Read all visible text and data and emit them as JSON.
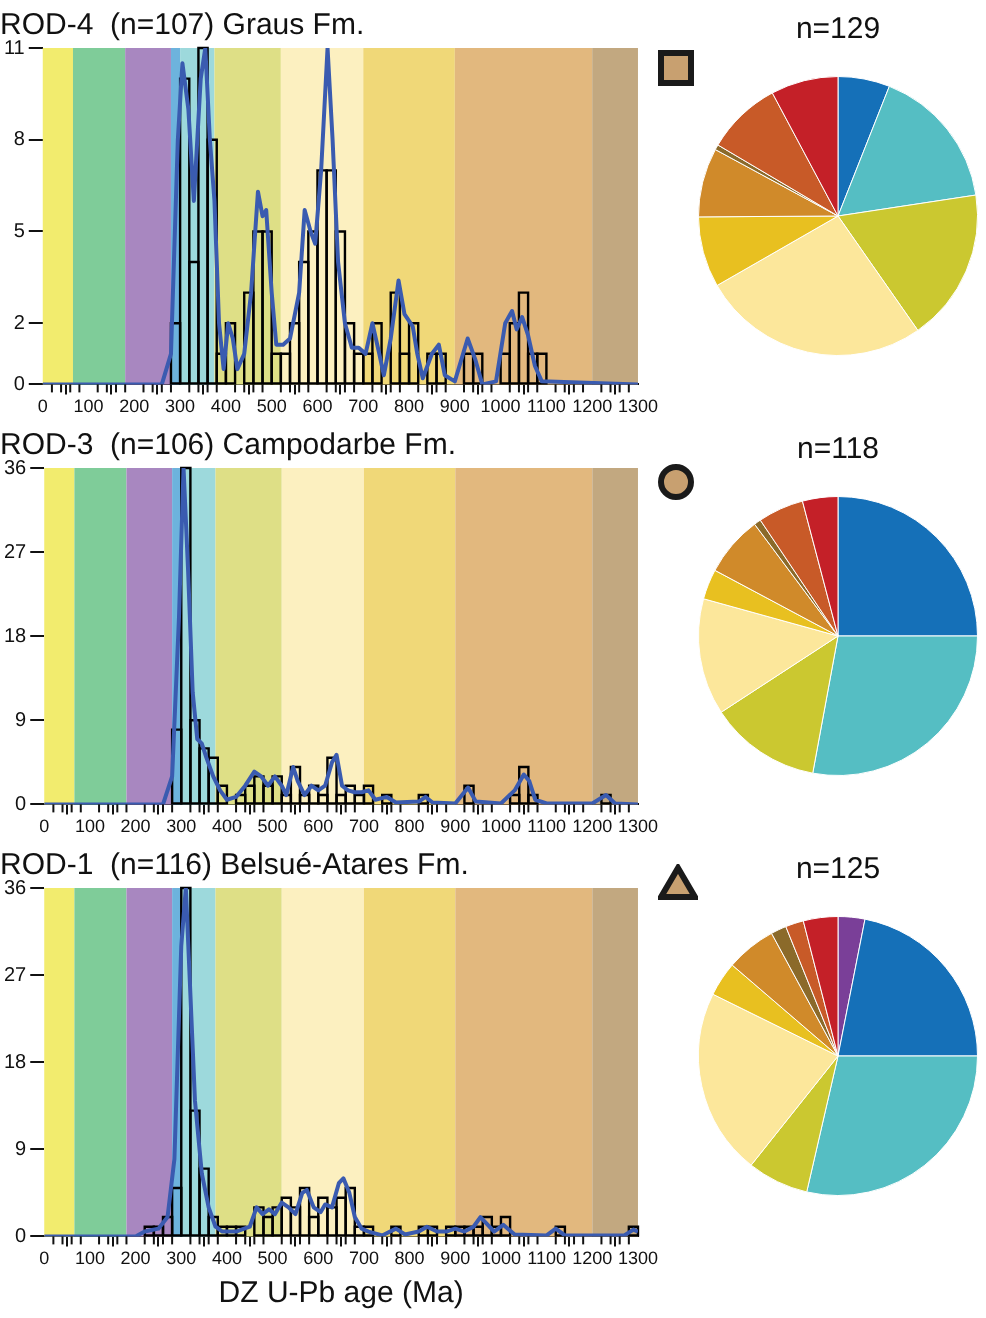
{
  "chart_data": [
    {
      "type": "histogram",
      "title": "ROD-4  (n=107) Graus Fm.",
      "bins": [
        0,
        20,
        40,
        60,
        80,
        100,
        120,
        140,
        160,
        180,
        200,
        220,
        240,
        260,
        280,
        300,
        320,
        340,
        360,
        380,
        400,
        420,
        440,
        460,
        480,
        500,
        520,
        540,
        560,
        580,
        600,
        620,
        640,
        660,
        680,
        700,
        720,
        740,
        760,
        780,
        800,
        820,
        840,
        860,
        880,
        900,
        920,
        940,
        960,
        980,
        1000,
        1020,
        1040,
        1060,
        1080,
        1100,
        1120,
        1140,
        1160,
        1180,
        1200,
        1220,
        1240,
        1260,
        1280,
        1300
      ],
      "series": [
        {
          "type": "histogram",
          "color": "#000000",
          "values": [
            0,
            0,
            0,
            0,
            0,
            0,
            0,
            0,
            0,
            0,
            0,
            0,
            0,
            0,
            2,
            10,
            4,
            11,
            8,
            1,
            2,
            0,
            3,
            5,
            5,
            1,
            1,
            2,
            4,
            5,
            7,
            7,
            5,
            2,
            1,
            1,
            2,
            0,
            3,
            1,
            2,
            0,
            1,
            1,
            0,
            0,
            1,
            1,
            0,
            0,
            1,
            2,
            3,
            1,
            1,
            0,
            0,
            0,
            0,
            0,
            0,
            0,
            0,
            0,
            0
          ]
        },
        {
          "type": "line",
          "color": "#3a5bb0",
          "x": [
            0,
            260,
            280,
            295,
            305,
            318,
            330,
            345,
            355,
            365,
            375,
            385,
            395,
            405,
            415,
            425,
            440,
            455,
            470,
            480,
            488,
            500,
            510,
            525,
            540,
            560,
            572,
            585,
            595,
            608,
            622,
            633,
            645,
            660,
            675,
            690,
            705,
            720,
            735,
            745,
            760,
            777,
            790,
            808,
            818,
            830,
            850,
            865,
            878,
            900,
            928,
            945,
            960,
            990,
            1010,
            1025,
            1035,
            1047,
            1060,
            1075,
            1090,
            1300
          ],
          "values": [
            0,
            0,
            1,
            8,
            10.5,
            9,
            6,
            10,
            11,
            8,
            6,
            2,
            0.5,
            2,
            1.5,
            0.5,
            1,
            3,
            6.3,
            5.5,
            5.7,
            3,
            1.3,
            1.3,
            1.5,
            3,
            5.7,
            5,
            4.6,
            7,
            11,
            8,
            4,
            2,
            1.2,
            1.2,
            1,
            2,
            1,
            0.3,
            1.5,
            3.4,
            2.3,
            1.9,
            1,
            0.2,
            1,
            1.3,
            0.3,
            0.1,
            1.5,
            0.8,
            0,
            0.1,
            2,
            2.4,
            1.8,
            2.2,
            1.6,
            0.6,
            0.1,
            0
          ]
        }
      ],
      "xlim": [
        0,
        1300
      ],
      "ylim": [
        0,
        11
      ],
      "yticks": [
        0,
        2,
        5,
        8,
        11
      ],
      "xticks": [
        0,
        {
          "value": 20,
          "label": null
        },
        {
          "value": 40,
          "label": null
        },
        {
          "value": 60,
          "label": null
        },
        {
          "value": 80,
          "label": null
        },
        100,
        {
          "value": 120,
          "label": null
        },
        {
          "value": 140,
          "label": null
        },
        {
          "value": 160,
          "label": null
        },
        {
          "value": 180,
          "label": null
        },
        200,
        {
          "value": 220,
          "label": null
        },
        {
          "value": 240,
          "label": null
        },
        {
          "value": 260,
          "label": null
        },
        {
          "value": 280,
          "label": null
        },
        300,
        {
          "value": 320,
          "label": null
        },
        {
          "value": 340,
          "label": null
        },
        {
          "value": 360,
          "label": null
        },
        {
          "value": 380,
          "label": null
        },
        400,
        {
          "value": 420,
          "label": null
        },
        {
          "value": 440,
          "label": null
        },
        {
          "value": 460,
          "label": null
        },
        {
          "value": 480,
          "label": null
        },
        500,
        {
          "value": 520,
          "label": null
        },
        {
          "value": 540,
          "label": null
        },
        {
          "value": 560,
          "label": null
        },
        {
          "value": 580,
          "label": null
        },
        600,
        {
          "value": 620,
          "label": null
        },
        {
          "value": 640,
          "label": null
        },
        {
          "value": 660,
          "label": null
        },
        {
          "value": 680,
          "label": null
        },
        700,
        {
          "value": 720,
          "label": null
        },
        {
          "value": 740,
          "label": null
        },
        {
          "value": 760,
          "label": null
        },
        {
          "value": 780,
          "label": null
        },
        800,
        {
          "value": 820,
          "label": null
        },
        {
          "value": 840,
          "label": null
        },
        {
          "value": 860,
          "label": null
        },
        {
          "value": 880,
          "label": null
        },
        900,
        {
          "value": 920,
          "label": null
        },
        {
          "value": 940,
          "label": null
        },
        {
          "value": 960,
          "label": null
        },
        {
          "value": 980,
          "label": null
        },
        1000,
        {
          "value": 1020,
          "label": null
        },
        {
          "value": 1040,
          "label": null
        },
        {
          "value": 1060,
          "label": null
        },
        {
          "value": 1080,
          "label": null
        },
        1100,
        {
          "value": 1120,
          "label": null
        },
        {
          "value": 1140,
          "label": null
        },
        {
          "value": 1160,
          "label": null
        },
        {
          "value": 1180,
          "label": null
        },
        1200,
        {
          "value": 1220,
          "label": null
        },
        {
          "value": 1240,
          "label": null
        },
        {
          "value": 1260,
          "label": null
        },
        {
          "value": 1280,
          "label": null
        },
        1300
      ],
      "bands": [
        {
          "axis": "x",
          "from": 0,
          "to": 66,
          "color": "#f2ec6e"
        },
        {
          "axis": "x",
          "from": 66,
          "to": 180,
          "color": "#7fcc99"
        },
        {
          "axis": "x",
          "from": 180,
          "to": 280,
          "color": "#a887c0"
        },
        {
          "axis": "x",
          "from": 280,
          "to": 300,
          "color": "#6db3dd"
        },
        {
          "axis": "x",
          "from": 300,
          "to": 375,
          "color": "#9dd9dc"
        },
        {
          "axis": "x",
          "from": 375,
          "to": 520,
          "color": "#dedf86"
        },
        {
          "axis": "x",
          "from": 520,
          "to": 700,
          "color": "#fcf0c0"
        },
        {
          "axis": "x",
          "from": 700,
          "to": 900,
          "color": "#f0d878"
        },
        {
          "axis": "x",
          "from": 900,
          "to": 1200,
          "color": "#e2b87e"
        },
        {
          "axis": "x",
          "from": 1200,
          "to": 1300,
          "color": "#c2a880"
        }
      ],
      "grid": false,
      "legend": false
    },
    {
      "type": "pie",
      "title": "n=129",
      "categories": [
        null,
        null,
        null,
        null,
        null,
        null,
        null,
        null,
        null
      ],
      "values": [
        6.0,
        16.6,
        17.7,
        26.4,
        8.2,
        8.0,
        0.6,
        8.7,
        7.8
      ],
      "colors": [
        "#1570b8",
        "#55bec3",
        "#cbc830",
        "#fce79b",
        "#e8c020",
        "#d08a2a",
        "#8b6a2a",
        "#c85a28",
        "#c42028"
      ],
      "legend": false
    },
    {
      "type": "histogram",
      "title": "ROD-3  (n=106) Campodarbe Fm.",
      "bins": [
        0,
        20,
        40,
        60,
        80,
        100,
        120,
        140,
        160,
        180,
        200,
        220,
        240,
        260,
        280,
        300,
        320,
        340,
        360,
        380,
        400,
        420,
        440,
        460,
        480,
        500,
        520,
        540,
        560,
        580,
        600,
        620,
        640,
        660,
        680,
        700,
        720,
        740,
        760,
        780,
        800,
        820,
        840,
        860,
        880,
        900,
        920,
        940,
        960,
        980,
        1000,
        1020,
        1040,
        1060,
        1080,
        1100,
        1120,
        1140,
        1160,
        1180,
        1200,
        1220,
        1240,
        1260,
        1280,
        1300
      ],
      "series": [
        {
          "type": "histogram",
          "color": "#000000",
          "values": [
            0,
            0,
            0,
            0,
            0,
            0,
            0,
            0,
            0,
            0,
            0,
            0,
            0,
            0,
            8,
            36,
            9,
            6,
            5,
            2,
            0,
            1,
            2,
            3,
            2,
            3,
            1,
            4,
            1,
            2,
            1,
            5,
            1,
            2,
            1,
            2,
            0,
            1,
            0,
            0,
            0,
            1,
            0,
            0,
            0,
            0,
            2,
            0,
            0,
            0,
            0,
            1,
            4,
            1,
            0,
            0,
            0,
            0,
            0,
            0,
            0,
            1,
            0,
            0,
            0
          ]
        },
        {
          "type": "line",
          "color": "#3a5bb0",
          "x": [
            0,
            260,
            280,
            295,
            305,
            315,
            325,
            335,
            345,
            355,
            370,
            385,
            400,
            420,
            440,
            460,
            475,
            490,
            505,
            520,
            530,
            545,
            555,
            570,
            585,
            600,
            615,
            630,
            640,
            652,
            665,
            680,
            695,
            710,
            725,
            750,
            770,
            820,
            835,
            850,
            900,
            928,
            945,
            1000,
            1030,
            1050,
            1062,
            1075,
            1100,
            1200,
            1230,
            1250,
            1300
          ],
          "values": [
            0,
            0,
            3,
            20,
            36,
            25,
            12,
            7,
            6.5,
            5,
            3,
            1.5,
            0.5,
            0.8,
            2,
            3.5,
            3,
            2,
            3,
            2,
            1,
            4,
            2.5,
            1,
            2,
            1.5,
            2,
            4.5,
            5.3,
            2,
            1.5,
            1.3,
            1.3,
            1.5,
            0.5,
            0.8,
            0.2,
            0.3,
            0.8,
            0.2,
            0.1,
            1.8,
            0.3,
            0.1,
            1.5,
            3.2,
            2.5,
            0.5,
            0.1,
            0.1,
            1,
            0.1,
            0
          ]
        }
      ],
      "xlim": [
        0,
        1300
      ],
      "ylim": [
        0,
        36
      ],
      "yticks": [
        0,
        9,
        18,
        27,
        36
      ],
      "xticks": [
        0,
        {
          "value": 20,
          "label": null
        },
        {
          "value": 40,
          "label": null
        },
        {
          "value": 60,
          "label": null
        },
        {
          "value": 80,
          "label": null
        },
        100,
        {
          "value": 120,
          "label": null
        },
        {
          "value": 140,
          "label": null
        },
        {
          "value": 160,
          "label": null
        },
        {
          "value": 180,
          "label": null
        },
        200,
        {
          "value": 220,
          "label": null
        },
        {
          "value": 240,
          "label": null
        },
        {
          "value": 260,
          "label": null
        },
        {
          "value": 280,
          "label": null
        },
        300,
        {
          "value": 320,
          "label": null
        },
        {
          "value": 340,
          "label": null
        },
        {
          "value": 360,
          "label": null
        },
        {
          "value": 380,
          "label": null
        },
        400,
        {
          "value": 420,
          "label": null
        },
        {
          "value": 440,
          "label": null
        },
        {
          "value": 460,
          "label": null
        },
        {
          "value": 480,
          "label": null
        },
        500,
        {
          "value": 520,
          "label": null
        },
        {
          "value": 540,
          "label": null
        },
        {
          "value": 560,
          "label": null
        },
        {
          "value": 580,
          "label": null
        },
        600,
        {
          "value": 620,
          "label": null
        },
        {
          "value": 640,
          "label": null
        },
        {
          "value": 660,
          "label": null
        },
        {
          "value": 680,
          "label": null
        },
        700,
        {
          "value": 720,
          "label": null
        },
        {
          "value": 740,
          "label": null
        },
        {
          "value": 760,
          "label": null
        },
        {
          "value": 780,
          "label": null
        },
        800,
        {
          "value": 820,
          "label": null
        },
        {
          "value": 840,
          "label": null
        },
        {
          "value": 860,
          "label": null
        },
        {
          "value": 880,
          "label": null
        },
        900,
        {
          "value": 920,
          "label": null
        },
        {
          "value": 940,
          "label": null
        },
        {
          "value": 960,
          "label": null
        },
        {
          "value": 980,
          "label": null
        },
        1000,
        {
          "value": 1020,
          "label": null
        },
        {
          "value": 1040,
          "label": null
        },
        {
          "value": 1060,
          "label": null
        },
        {
          "value": 1080,
          "label": null
        },
        1100,
        {
          "value": 1120,
          "label": null
        },
        {
          "value": 1140,
          "label": null
        },
        {
          "value": 1160,
          "label": null
        },
        {
          "value": 1180,
          "label": null
        },
        1200,
        {
          "value": 1220,
          "label": null
        },
        {
          "value": 1240,
          "label": null
        },
        {
          "value": 1260,
          "label": null
        },
        {
          "value": 1280,
          "label": null
        },
        1300
      ],
      "bands": [
        {
          "axis": "x",
          "from": 0,
          "to": 66,
          "color": "#f2ec6e"
        },
        {
          "axis": "x",
          "from": 66,
          "to": 180,
          "color": "#7fcc99"
        },
        {
          "axis": "x",
          "from": 180,
          "to": 280,
          "color": "#a887c0"
        },
        {
          "axis": "x",
          "from": 280,
          "to": 300,
          "color": "#6db3dd"
        },
        {
          "axis": "x",
          "from": 300,
          "to": 375,
          "color": "#9dd9dc"
        },
        {
          "axis": "x",
          "from": 375,
          "to": 520,
          "color": "#dedf86"
        },
        {
          "axis": "x",
          "from": 520,
          "to": 700,
          "color": "#fcf0c0"
        },
        {
          "axis": "x",
          "from": 700,
          "to": 900,
          "color": "#f0d878"
        },
        {
          "axis": "x",
          "from": 900,
          "to": 1200,
          "color": "#e2b87e"
        },
        {
          "axis": "x",
          "from": 1200,
          "to": 1300,
          "color": "#c2a880"
        }
      ],
      "grid": false,
      "legend": false
    },
    {
      "type": "pie",
      "title": "n=118",
      "categories": [
        null,
        null,
        null,
        null,
        null,
        null,
        null,
        null,
        null
      ],
      "values": [
        25.0,
        27.9,
        12.9,
        13.5,
        3.5,
        7.0,
        0.8,
        5.3,
        4.1
      ],
      "colors": [
        "#1570b8",
        "#55bec3",
        "#cbc830",
        "#fce79b",
        "#e8c020",
        "#d08a2a",
        "#8b6a2a",
        "#c85a28",
        "#c42028"
      ],
      "legend": false
    },
    {
      "type": "histogram",
      "title": "ROD-1  (n=116) Belsué-Atares Fm.",
      "xlabel": "DZ U-Pb age (Ma)",
      "bins": [
        0,
        20,
        40,
        60,
        80,
        100,
        120,
        140,
        160,
        180,
        200,
        220,
        240,
        260,
        280,
        300,
        320,
        340,
        360,
        380,
        400,
        420,
        440,
        460,
        480,
        500,
        520,
        540,
        560,
        580,
        600,
        620,
        640,
        660,
        680,
        700,
        720,
        740,
        760,
        780,
        800,
        820,
        840,
        860,
        880,
        900,
        920,
        940,
        960,
        980,
        1000,
        1020,
        1040,
        1060,
        1080,
        1100,
        1120,
        1140,
        1160,
        1180,
        1200,
        1220,
        1240,
        1260,
        1280,
        1300
      ],
      "series": [
        {
          "type": "histogram",
          "color": "#000000",
          "values": [
            0,
            0,
            0,
            0,
            0,
            0,
            0,
            0,
            0,
            0,
            0,
            1,
            1,
            2,
            5,
            36,
            13,
            7,
            2,
            1,
            1,
            1,
            0,
            3,
            2,
            3,
            4,
            3,
            5,
            2,
            4,
            3,
            4,
            5,
            1,
            1,
            0,
            0,
            1,
            0,
            0,
            1,
            1,
            0,
            1,
            1,
            1,
            1,
            2,
            1,
            2,
            0,
            0,
            0,
            0,
            0,
            1,
            0,
            0,
            0,
            0,
            0,
            0,
            0,
            1
          ]
        },
        {
          "type": "line",
          "color": "#3a5bb0",
          "x": [
            0,
            200,
            220,
            250,
            270,
            285,
            300,
            310,
            320,
            330,
            345,
            360,
            375,
            390,
            420,
            450,
            465,
            478,
            492,
            505,
            520,
            535,
            550,
            565,
            575,
            590,
            605,
            615,
            630,
            645,
            655,
            668,
            680,
            695,
            710,
            740,
            770,
            790,
            820,
            838,
            860,
            880,
            900,
            920,
            940,
            955,
            965,
            985,
            1005,
            1030,
            1100,
            1120,
            1140,
            1270,
            1290,
            1300
          ],
          "values": [
            0,
            0,
            0.5,
            0.8,
            2,
            8,
            30,
            36,
            25,
            14,
            6.5,
            3,
            1,
            0.5,
            0.5,
            1,
            3,
            2.3,
            2.8,
            2.3,
            3.5,
            3,
            2.3,
            4.5,
            4.8,
            3,
            2.5,
            3.3,
            3,
            5.5,
            6,
            4.5,
            2,
            0.8,
            0.5,
            0.1,
            0.8,
            0.2,
            0.5,
            1,
            0.5,
            0.5,
            0.8,
            0.5,
            1,
            2,
            1.5,
            0.5,
            1.2,
            0.2,
            0.1,
            0.8,
            0.1,
            0.1,
            0.7,
            0.5
          ]
        }
      ],
      "xlim": [
        0,
        1300
      ],
      "ylim": [
        0,
        36
      ],
      "yticks": [
        0,
        9,
        18,
        27,
        36
      ],
      "xticks": [
        0,
        {
          "value": 20,
          "label": null
        },
        {
          "value": 40,
          "label": null
        },
        {
          "value": 60,
          "label": null
        },
        {
          "value": 80,
          "label": null
        },
        100,
        {
          "value": 120,
          "label": null
        },
        {
          "value": 140,
          "label": null
        },
        {
          "value": 160,
          "label": null
        },
        {
          "value": 180,
          "label": null
        },
        200,
        {
          "value": 220,
          "label": null
        },
        {
          "value": 240,
          "label": null
        },
        {
          "value": 260,
          "label": null
        },
        {
          "value": 280,
          "label": null
        },
        300,
        {
          "value": 320,
          "label": null
        },
        {
          "value": 340,
          "label": null
        },
        {
          "value": 360,
          "label": null
        },
        {
          "value": 380,
          "label": null
        },
        400,
        {
          "value": 420,
          "label": null
        },
        {
          "value": 440,
          "label": null
        },
        {
          "value": 460,
          "label": null
        },
        {
          "value": 480,
          "label": null
        },
        500,
        {
          "value": 520,
          "label": null
        },
        {
          "value": 540,
          "label": null
        },
        {
          "value": 560,
          "label": null
        },
        {
          "value": 580,
          "label": null
        },
        600,
        {
          "value": 620,
          "label": null
        },
        {
          "value": 640,
          "label": null
        },
        {
          "value": 660,
          "label": null
        },
        {
          "value": 680,
          "label": null
        },
        700,
        {
          "value": 720,
          "label": null
        },
        {
          "value": 740,
          "label": null
        },
        {
          "value": 760,
          "label": null
        },
        {
          "value": 780,
          "label": null
        },
        800,
        {
          "value": 820,
          "label": null
        },
        {
          "value": 840,
          "label": null
        },
        {
          "value": 860,
          "label": null
        },
        {
          "value": 880,
          "label": null
        },
        900,
        {
          "value": 920,
          "label": null
        },
        {
          "value": 940,
          "label": null
        },
        {
          "value": 960,
          "label": null
        },
        {
          "value": 980,
          "label": null
        },
        1000,
        {
          "value": 1020,
          "label": null
        },
        {
          "value": 1040,
          "label": null
        },
        {
          "value": 1060,
          "label": null
        },
        {
          "value": 1080,
          "label": null
        },
        1100,
        {
          "value": 1120,
          "label": null
        },
        {
          "value": 1140,
          "label": null
        },
        {
          "value": 1160,
          "label": null
        },
        {
          "value": 1180,
          "label": null
        },
        1200,
        {
          "value": 1220,
          "label": null
        },
        {
          "value": 1240,
          "label": null
        },
        {
          "value": 1260,
          "label": null
        },
        {
          "value": 1280,
          "label": null
        },
        1300
      ],
      "bands": [
        {
          "axis": "x",
          "from": 0,
          "to": 66,
          "color": "#f2ec6e"
        },
        {
          "axis": "x",
          "from": 66,
          "to": 180,
          "color": "#7fcc99"
        },
        {
          "axis": "x",
          "from": 180,
          "to": 280,
          "color": "#a887c0"
        },
        {
          "axis": "x",
          "from": 280,
          "to": 300,
          "color": "#6db3dd"
        },
        {
          "axis": "x",
          "from": 300,
          "to": 375,
          "color": "#9dd9dc"
        },
        {
          "axis": "x",
          "from": 375,
          "to": 520,
          "color": "#dedf86"
        },
        {
          "axis": "x",
          "from": 520,
          "to": 700,
          "color": "#fcf0c0"
        },
        {
          "axis": "x",
          "from": 700,
          "to": 900,
          "color": "#f0d878"
        },
        {
          "axis": "x",
          "from": 900,
          "to": 1200,
          "color": "#e2b87e"
        },
        {
          "axis": "x",
          "from": 1200,
          "to": 1300,
          "color": "#c2a880"
        }
      ],
      "grid": false,
      "legend": false
    },
    {
      "type": "pie",
      "title": "n=125",
      "categories": [
        null,
        null,
        null,
        null,
        null,
        null,
        null,
        null,
        null,
        null
      ],
      "values": [
        3.1,
        21.9,
        28.6,
        7.1,
        21.6,
        4.0,
        5.8,
        1.8,
        2.1,
        4.0
      ],
      "colors": [
        "#7a3f98",
        "#1570b8",
        "#55bec3",
        "#cbc830",
        "#fce79b",
        "#e8c020",
        "#d08a2a",
        "#8b6a2a",
        "#c85a28",
        "#c42028"
      ],
      "legend": false
    }
  ]
}
